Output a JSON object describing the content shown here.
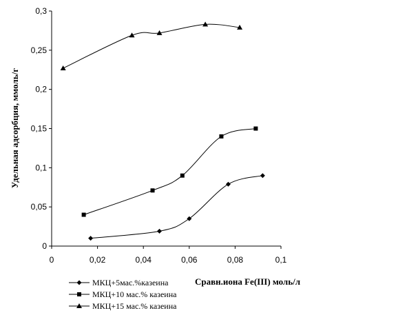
{
  "chart_data": {
    "type": "line",
    "title": "",
    "xlabel": "Сравн.иона Fe(III) моль/л",
    "ylabel": "Удельная адсорбция, ммоль/г",
    "xlim": [
      0,
      0.1
    ],
    "ylim": [
      0,
      0.3
    ],
    "x_ticks": [
      "0",
      "0,02",
      "0,04",
      "0,06",
      "0,08",
      "0,1"
    ],
    "y_ticks": [
      "0",
      "0,05",
      "0,1",
      "0,15",
      "0,2",
      "0,25",
      "0,3"
    ],
    "grid": false,
    "legend_position": "bottom-left",
    "line_color": "#000000",
    "series": [
      {
        "name": "МКЦ+5мас.%казеина",
        "marker": "diamond",
        "x": [
          0.017,
          0.047,
          0.06,
          0.077,
          0.092
        ],
        "y": [
          0.01,
          0.019,
          0.035,
          0.079,
          0.09
        ]
      },
      {
        "name": "МКЦ+10 мас.% казеина",
        "marker": "square",
        "x": [
          0.014,
          0.044,
          0.057,
          0.074,
          0.089
        ],
        "y": [
          0.04,
          0.071,
          0.09,
          0.14,
          0.15
        ]
      },
      {
        "name": "МКЦ+15 мас.% казеина",
        "marker": "triangle",
        "x": [
          0.005,
          0.035,
          0.047,
          0.067,
          0.082
        ],
        "y": [
          0.227,
          0.269,
          0.272,
          0.283,
          0.279
        ]
      }
    ]
  }
}
